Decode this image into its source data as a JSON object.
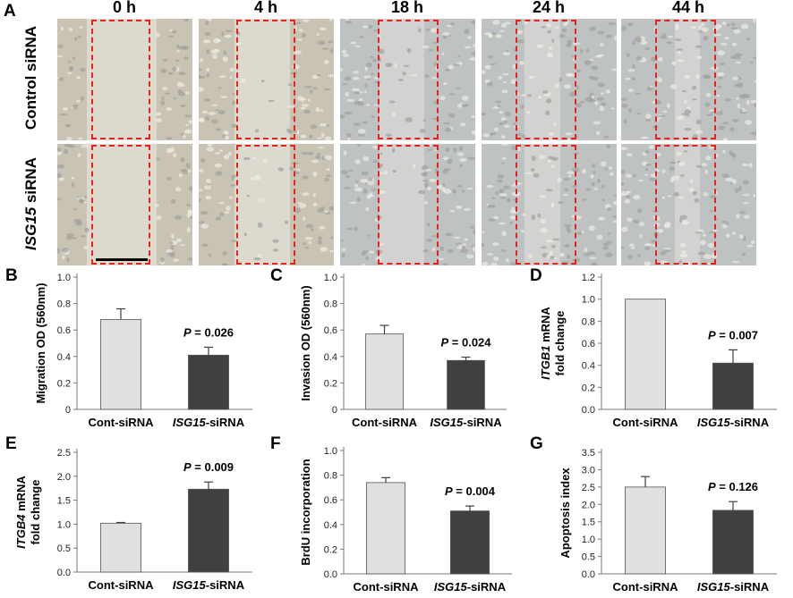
{
  "panel_a": {
    "letter": "A",
    "time_labels": [
      "0 h",
      "4 h",
      "18 h",
      "24 h",
      "44 h"
    ],
    "row_labels": [
      {
        "prefix": "",
        "italic": "",
        "suffix": "Control siRNA"
      },
      {
        "prefix": "",
        "italic": "ISG15",
        "suffix": " siRNA"
      }
    ],
    "gap_box_color": "#e8211c"
  },
  "chart_data": [
    {
      "type": "bar",
      "letter": "B",
      "categories": [
        "Cont-siRNA",
        "ISG15-siRNA"
      ],
      "category_display": [
        {
          "plain": "Cont-siRNA",
          "italic": "",
          "rest": ""
        },
        {
          "plain": "",
          "italic": "ISG15",
          "rest": "-siRNA"
        }
      ],
      "values": [
        0.68,
        0.41
      ],
      "errors": [
        0.08,
        0.06
      ],
      "ylabel": "Migration OD (560nm)",
      "ylabel_italic": "",
      "ylabel2": "",
      "ylim": [
        0,
        1.0
      ],
      "yticks": [
        "0",
        "0.2",
        "0.4",
        "0.6",
        "0.8",
        "1.0"
      ],
      "ytick_values": [
        0,
        0.2,
        0.4,
        0.6,
        0.8,
        1.0
      ],
      "annotation": {
        "p_label": "P",
        "text": " = 0.026"
      },
      "bar_colors": [
        "#e0e0e0",
        "#404040"
      ]
    },
    {
      "type": "bar",
      "letter": "C",
      "categories": [
        "Cont-siRNA",
        "ISG15-siRNA"
      ],
      "category_display": [
        {
          "plain": "Cont-siRNA",
          "italic": "",
          "rest": ""
        },
        {
          "plain": "",
          "italic": "ISG15",
          "rest": "-siRNA"
        }
      ],
      "values": [
        0.57,
        0.37
      ],
      "errors": [
        0.065,
        0.025
      ],
      "ylabel": "Invasion OD (560nm)",
      "ylabel_italic": "",
      "ylabel2": "",
      "ylim": [
        0,
        1.0
      ],
      "yticks": [
        "0",
        "0.2",
        "0.4",
        "0.6",
        "0.8",
        "1.0"
      ],
      "ytick_values": [
        0,
        0.2,
        0.4,
        0.6,
        0.8,
        1.0
      ],
      "annotation": {
        "p_label": "P",
        "text": " = 0.024"
      },
      "bar_colors": [
        "#e0e0e0",
        "#404040"
      ]
    },
    {
      "type": "bar",
      "letter": "D",
      "categories": [
        "Cont-siRNA",
        "ISG15-siRNA"
      ],
      "category_display": [
        {
          "plain": "Cont-siRNA",
          "italic": "",
          "rest": ""
        },
        {
          "plain": "",
          "italic": "ISG15",
          "rest": "-siRNA"
        }
      ],
      "values": [
        1.0,
        0.42
      ],
      "errors": [
        0,
        0.12
      ],
      "ylabel": " mRNA",
      "ylabel_italic": "ITGB1",
      "ylabel2": "fold change",
      "ylim": [
        0,
        1.2
      ],
      "yticks": [
        "0.0",
        "0.2",
        "0.4",
        "0.6",
        "0.8",
        "1.0",
        "1.2"
      ],
      "ytick_values": [
        0,
        0.2,
        0.4,
        0.6,
        0.8,
        1.0,
        1.2
      ],
      "annotation": {
        "p_label": "P",
        "text": " = 0.007"
      },
      "bar_colors": [
        "#e0e0e0",
        "#404040"
      ]
    },
    {
      "type": "bar",
      "letter": "E",
      "categories": [
        "Cont-siRNA",
        "ISG15-siRNA"
      ],
      "category_display": [
        {
          "plain": "Cont-siRNA",
          "italic": "",
          "rest": ""
        },
        {
          "plain": "",
          "italic": "ISG15",
          "rest": "-siRNA"
        }
      ],
      "values": [
        1.02,
        1.73
      ],
      "errors": [
        0.015,
        0.15
      ],
      "ylabel": " mRNA",
      "ylabel_italic": "ITGB4",
      "ylabel2": "fold change",
      "ylim": [
        0,
        2.5
      ],
      "yticks": [
        "0.0",
        "0.5",
        "1.0",
        "1.5",
        "2.0",
        "2.5"
      ],
      "ytick_values": [
        0,
        0.5,
        1.0,
        1.5,
        2.0,
        2.5
      ],
      "annotation": {
        "p_label": "P",
        "text": " = 0.009"
      },
      "bar_colors": [
        "#e0e0e0",
        "#404040"
      ]
    },
    {
      "type": "bar",
      "letter": "F",
      "categories": [
        "Cont-siRNA",
        "ISG15-siRNA"
      ],
      "category_display": [
        {
          "plain": "Cont-siRNA",
          "italic": "",
          "rest": ""
        },
        {
          "plain": "",
          "italic": "ISG15",
          "rest": "-siRNA"
        }
      ],
      "values": [
        0.74,
        0.51
      ],
      "errors": [
        0.04,
        0.04
      ],
      "ylabel": "BrdU incorporation",
      "ylabel_italic": "",
      "ylabel2": "",
      "ylim": [
        0,
        1.0
      ],
      "yticks": [
        "0.0",
        "0.2",
        "0.4",
        "0.6",
        "0.8",
        "1.0"
      ],
      "ytick_values": [
        0,
        0.2,
        0.4,
        0.6,
        0.8,
        1.0
      ],
      "annotation": {
        "p_label": "P",
        "text": " = 0.004"
      },
      "bar_colors": [
        "#e0e0e0",
        "#404040"
      ]
    },
    {
      "type": "bar",
      "letter": "G",
      "categories": [
        "Cont-siRNA",
        "ISG15-siRNA"
      ],
      "category_display": [
        {
          "plain": "Cont-siRNA",
          "italic": "",
          "rest": ""
        },
        {
          "plain": "",
          "italic": "ISG15",
          "rest": "-siRNA"
        }
      ],
      "values": [
        2.5,
        1.83
      ],
      "errors": [
        0.3,
        0.25
      ],
      "ylabel": "Apoptosis index",
      "ylabel_italic": "",
      "ylabel2": "",
      "ylim": [
        0,
        3.5
      ],
      "yticks": [
        "0.0",
        "0.5",
        "1.0",
        "1.5",
        "2.0",
        "2.5",
        "3.0",
        "3.5"
      ],
      "ytick_values": [
        0,
        0.5,
        1.0,
        1.5,
        2.0,
        2.5,
        3.0,
        3.5
      ],
      "annotation": {
        "p_label": "P",
        "text": " = 0.126"
      },
      "bar_colors": [
        "#e0e0e0",
        "#404040"
      ]
    }
  ]
}
